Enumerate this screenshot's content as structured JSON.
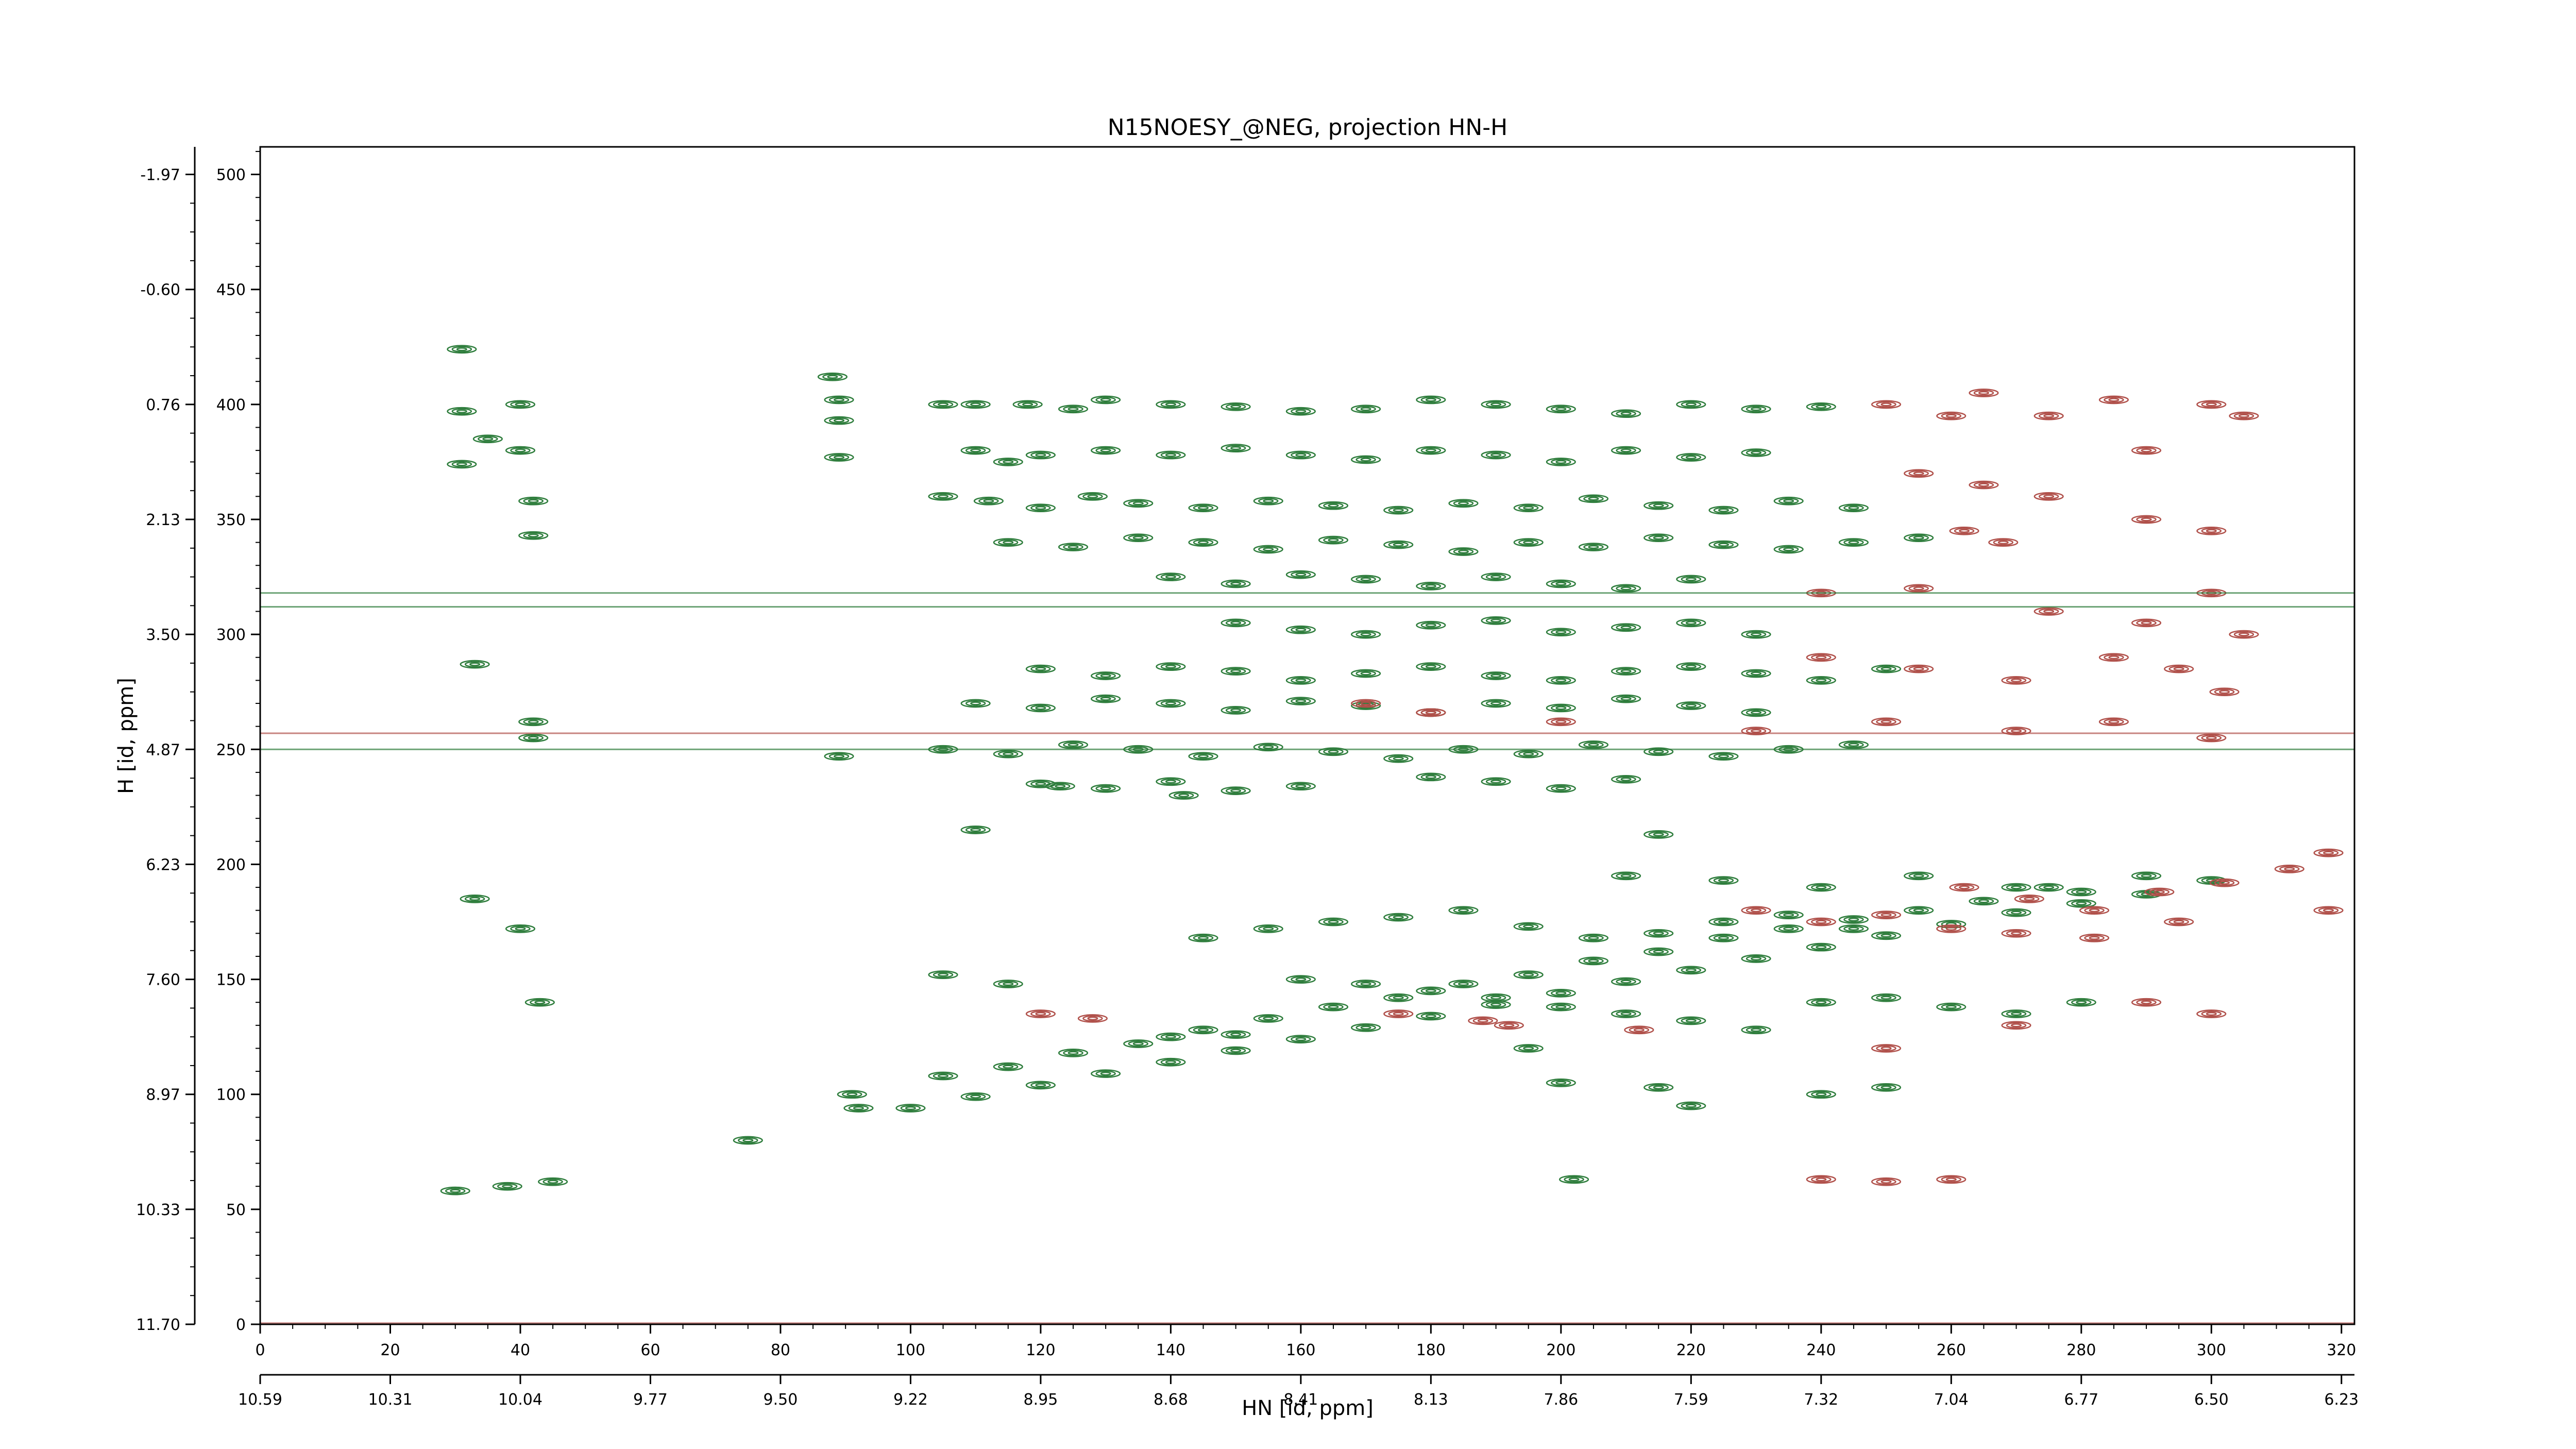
{
  "chart_data": {
    "type": "contour",
    "title": "N15NOESY_@NEG, projection HN-H",
    "xlabel": "HN [id, ppm]",
    "ylabel": "H [id, ppm]",
    "x_index_range": [
      0,
      322
    ],
    "y_index_range": [
      0,
      512
    ],
    "x_index_ticks": [
      "0",
      "20",
      "40",
      "60",
      "80",
      "100",
      "120",
      "140",
      "160",
      "180",
      "200",
      "220",
      "240",
      "260",
      "280",
      "300",
      "320"
    ],
    "x_ppm_ticks": [
      "10.59",
      "10.31",
      "10.04",
      "9.77",
      "9.50",
      "9.22",
      "8.95",
      "8.68",
      "8.41",
      "8.13",
      "7.86",
      "7.59",
      "7.32",
      "7.04",
      "6.77",
      "6.50",
      "6.23"
    ],
    "y_index_ticks": [
      "500",
      "450",
      "400",
      "350",
      "300",
      "250",
      "200",
      "150",
      "100",
      "50",
      "0"
    ],
    "y_ppm_ticks": [
      "-1.97",
      "-0.60",
      "0.76",
      "2.13",
      "3.50",
      "4.87",
      "6.23",
      "7.60",
      "8.97",
      "10.33",
      "11.70"
    ],
    "colors": {
      "positive": "#2e7d3c",
      "negative": "#b0504a"
    },
    "series": [
      {
        "name": "positive",
        "peaks": [
          [
            31,
            424
          ],
          [
            31,
            397
          ],
          [
            31,
            374
          ],
          [
            35,
            385
          ],
          [
            40,
            400
          ],
          [
            40,
            380
          ],
          [
            42,
            358
          ],
          [
            42,
            343
          ],
          [
            33,
            287
          ],
          [
            42,
            262
          ],
          [
            42,
            255
          ],
          [
            88,
            412
          ],
          [
            89,
            402
          ],
          [
            89,
            393
          ],
          [
            89,
            377
          ],
          [
            89,
            247
          ],
          [
            33,
            185
          ],
          [
            40,
            172
          ],
          [
            43,
            140
          ],
          [
            91,
            100
          ],
          [
            92,
            94
          ],
          [
            75,
            80
          ],
          [
            105,
            400
          ],
          [
            110,
            400
          ],
          [
            118,
            400
          ],
          [
            125,
            398
          ],
          [
            130,
            402
          ],
          [
            140,
            400
          ],
          [
            150,
            399
          ],
          [
            160,
            397
          ],
          [
            170,
            398
          ],
          [
            180,
            402
          ],
          [
            190,
            400
          ],
          [
            200,
            398
          ],
          [
            210,
            396
          ],
          [
            220,
            400
          ],
          [
            230,
            398
          ],
          [
            240,
            399
          ],
          [
            110,
            380
          ],
          [
            115,
            375
          ],
          [
            120,
            378
          ],
          [
            130,
            380
          ],
          [
            140,
            378
          ],
          [
            150,
            381
          ],
          [
            160,
            378
          ],
          [
            170,
            376
          ],
          [
            180,
            380
          ],
          [
            190,
            378
          ],
          [
            200,
            375
          ],
          [
            210,
            380
          ],
          [
            220,
            377
          ],
          [
            230,
            379
          ],
          [
            105,
            360
          ],
          [
            112,
            358
          ],
          [
            120,
            355
          ],
          [
            128,
            360
          ],
          [
            135,
            357
          ],
          [
            145,
            355
          ],
          [
            155,
            358
          ],
          [
            165,
            356
          ],
          [
            175,
            354
          ],
          [
            185,
            357
          ],
          [
            195,
            355
          ],
          [
            205,
            359
          ],
          [
            215,
            356
          ],
          [
            225,
            354
          ],
          [
            235,
            358
          ],
          [
            245,
            355
          ],
          [
            115,
            340
          ],
          [
            125,
            338
          ],
          [
            135,
            342
          ],
          [
            145,
            340
          ],
          [
            155,
            337
          ],
          [
            165,
            341
          ],
          [
            175,
            339
          ],
          [
            185,
            336
          ],
          [
            195,
            340
          ],
          [
            205,
            338
          ],
          [
            215,
            342
          ],
          [
            225,
            339
          ],
          [
            235,
            337
          ],
          [
            245,
            340
          ],
          [
            255,
            342
          ],
          [
            140,
            325
          ],
          [
            150,
            322
          ],
          [
            160,
            326
          ],
          [
            170,
            324
          ],
          [
            180,
            321
          ],
          [
            190,
            325
          ],
          [
            200,
            322
          ],
          [
            210,
            320
          ],
          [
            220,
            324
          ],
          [
            150,
            305
          ],
          [
            160,
            302
          ],
          [
            170,
            300
          ],
          [
            180,
            304
          ],
          [
            190,
            306
          ],
          [
            200,
            301
          ],
          [
            210,
            303
          ],
          [
            220,
            305
          ],
          [
            230,
            300
          ],
          [
            120,
            285
          ],
          [
            130,
            282
          ],
          [
            140,
            286
          ],
          [
            150,
            284
          ],
          [
            160,
            280
          ],
          [
            170,
            283
          ],
          [
            180,
            286
          ],
          [
            190,
            282
          ],
          [
            200,
            280
          ],
          [
            210,
            284
          ],
          [
            220,
            286
          ],
          [
            230,
            283
          ],
          [
            240,
            280
          ],
          [
            250,
            285
          ],
          [
            110,
            270
          ],
          [
            120,
            268
          ],
          [
            130,
            272
          ],
          [
            140,
            270
          ],
          [
            150,
            267
          ],
          [
            160,
            271
          ],
          [
            170,
            269
          ],
          [
            180,
            266
          ],
          [
            190,
            270
          ],
          [
            200,
            268
          ],
          [
            210,
            272
          ],
          [
            220,
            269
          ],
          [
            230,
            266
          ],
          [
            105,
            250
          ],
          [
            115,
            248
          ],
          [
            125,
            252
          ],
          [
            135,
            250
          ],
          [
            145,
            247
          ],
          [
            155,
            251
          ],
          [
            165,
            249
          ],
          [
            175,
            246
          ],
          [
            185,
            250
          ],
          [
            195,
            248
          ],
          [
            205,
            252
          ],
          [
            215,
            249
          ],
          [
            225,
            247
          ],
          [
            235,
            250
          ],
          [
            245,
            252
          ],
          [
            120,
            235
          ],
          [
            130,
            233
          ],
          [
            140,
            236
          ],
          [
            150,
            232
          ],
          [
            160,
            234
          ],
          [
            180,
            238
          ],
          [
            190,
            236
          ],
          [
            200,
            233
          ],
          [
            210,
            237
          ],
          [
            110,
            215
          ],
          [
            123,
            234
          ],
          [
            142,
            230
          ],
          [
            215,
            213
          ],
          [
            210,
            195
          ],
          [
            225,
            193
          ],
          [
            240,
            190
          ],
          [
            255,
            195
          ],
          [
            270,
            190
          ],
          [
            280,
            188
          ],
          [
            290,
            195
          ],
          [
            300,
            193
          ],
          [
            100,
            94
          ],
          [
            110,
            99
          ],
          [
            120,
            104
          ],
          [
            130,
            109
          ],
          [
            140,
            114
          ],
          [
            150,
            119
          ],
          [
            160,
            124
          ],
          [
            170,
            129
          ],
          [
            180,
            134
          ],
          [
            190,
            139
          ],
          [
            200,
            144
          ],
          [
            210,
            149
          ],
          [
            220,
            154
          ],
          [
            230,
            159
          ],
          [
            240,
            164
          ],
          [
            250,
            169
          ],
          [
            260,
            174
          ],
          [
            270,
            179
          ],
          [
            280,
            183
          ],
          [
            290,
            187
          ],
          [
            105,
            108
          ],
          [
            115,
            112
          ],
          [
            125,
            118
          ],
          [
            135,
            122
          ],
          [
            145,
            128
          ],
          [
            155,
            133
          ],
          [
            165,
            138
          ],
          [
            175,
            142
          ],
          [
            185,
            148
          ],
          [
            195,
            152
          ],
          [
            205,
            158
          ],
          [
            215,
            162
          ],
          [
            225,
            168
          ],
          [
            235,
            172
          ],
          [
            245,
            176
          ],
          [
            255,
            180
          ],
          [
            265,
            184
          ],
          [
            275,
            190
          ],
          [
            145,
            168
          ],
          [
            155,
            172
          ],
          [
            165,
            175
          ],
          [
            175,
            177
          ],
          [
            185,
            180
          ],
          [
            195,
            173
          ],
          [
            205,
            168
          ],
          [
            215,
            170
          ],
          [
            225,
            175
          ],
          [
            235,
            178
          ],
          [
            245,
            172
          ],
          [
            160,
            150
          ],
          [
            170,
            148
          ],
          [
            180,
            145
          ],
          [
            190,
            142
          ],
          [
            200,
            138
          ],
          [
            210,
            135
          ],
          [
            220,
            132
          ],
          [
            230,
            128
          ],
          [
            240,
            140
          ],
          [
            250,
            142
          ],
          [
            260,
            138
          ],
          [
            270,
            135
          ],
          [
            280,
            140
          ],
          [
            105,
            152
          ],
          [
            115,
            148
          ],
          [
            140,
            125
          ],
          [
            150,
            126
          ],
          [
            195,
            120
          ],
          [
            200,
            105
          ],
          [
            215,
            103
          ],
          [
            220,
            95
          ],
          [
            240,
            100
          ],
          [
            250,
            103
          ],
          [
            202,
            63
          ],
          [
            30,
            58
          ],
          [
            38,
            60
          ],
          [
            45,
            62
          ]
        ]
      },
      {
        "name": "negative",
        "peaks": [
          [
            250,
            400
          ],
          [
            260,
            395
          ],
          [
            265,
            405
          ],
          [
            275,
            395
          ],
          [
            285,
            402
          ],
          [
            290,
            380
          ],
          [
            300,
            400
          ],
          [
            305,
            395
          ],
          [
            255,
            370
          ],
          [
            265,
            365
          ],
          [
            275,
            360
          ],
          [
            290,
            350
          ],
          [
            300,
            345
          ],
          [
            262,
            345
          ],
          [
            268,
            340
          ],
          [
            240,
            318
          ],
          [
            255,
            320
          ],
          [
            275,
            310
          ],
          [
            290,
            305
          ],
          [
            300,
            318
          ],
          [
            305,
            300
          ],
          [
            240,
            290
          ],
          [
            255,
            285
          ],
          [
            270,
            280
          ],
          [
            285,
            290
          ],
          [
            295,
            285
          ],
          [
            302,
            275
          ],
          [
            180,
            266
          ],
          [
            200,
            262
          ],
          [
            230,
            258
          ],
          [
            250,
            262
          ],
          [
            270,
            258
          ],
          [
            285,
            262
          ],
          [
            300,
            255
          ],
          [
            262,
            190
          ],
          [
            272,
            185
          ],
          [
            282,
            180
          ],
          [
            292,
            188
          ],
          [
            302,
            192
          ],
          [
            312,
            198
          ],
          [
            318,
            205
          ],
          [
            318,
            180
          ],
          [
            230,
            180
          ],
          [
            240,
            175
          ],
          [
            250,
            178
          ],
          [
            260,
            172
          ],
          [
            270,
            170
          ],
          [
            282,
            168
          ],
          [
            295,
            175
          ],
          [
            120,
            135
          ],
          [
            128,
            133
          ],
          [
            175,
            135
          ],
          [
            188,
            132
          ],
          [
            192,
            130
          ],
          [
            212,
            128
          ],
          [
            250,
            120
          ],
          [
            270,
            130
          ],
          [
            290,
            140
          ],
          [
            300,
            135
          ],
          [
            240,
            63
          ],
          [
            250,
            62
          ],
          [
            260,
            63
          ],
          [
            180,
            266
          ],
          [
            170,
            270
          ]
        ]
      }
    ]
  }
}
